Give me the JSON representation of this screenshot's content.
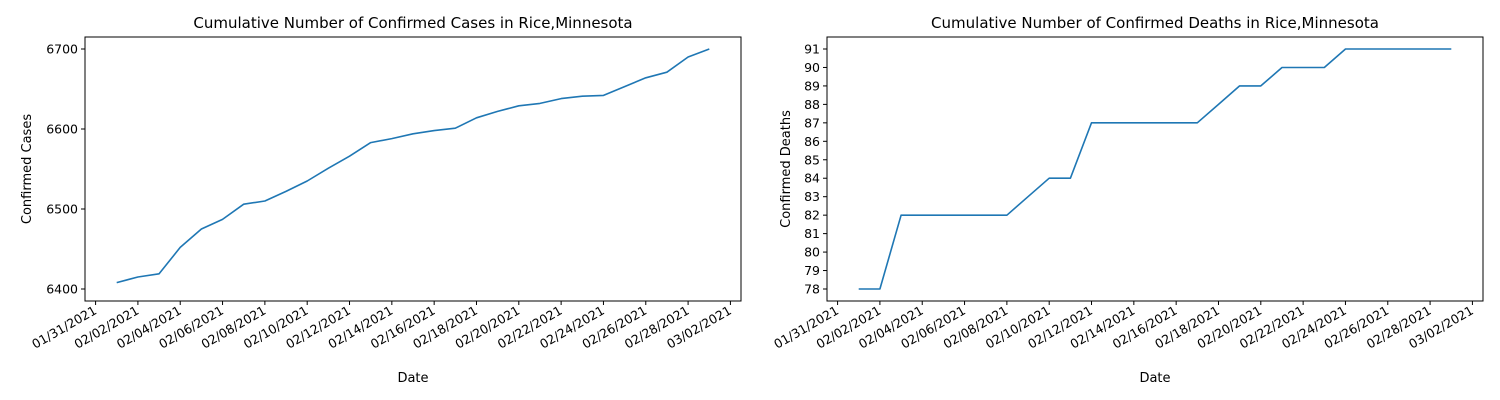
{
  "colors": {
    "series": "#1f77b4",
    "axes": "#000000",
    "background": "#ffffff"
  },
  "chart_data": [
    {
      "type": "line",
      "title": "Cumulative Number of Confirmed Cases in Rice,Minnesota",
      "xlabel": "Date",
      "ylabel": "Confirmed Cases",
      "xlim": [
        "2021-01-31",
        "2021-03-02"
      ],
      "ylim": [
        6400,
        6700
      ],
      "x_ticks": [
        "01/31/2021",
        "02/02/2021",
        "02/04/2021",
        "02/06/2021",
        "02/08/2021",
        "02/10/2021",
        "02/12/2021",
        "02/14/2021",
        "02/16/2021",
        "02/18/2021",
        "02/20/2021",
        "02/22/2021",
        "02/24/2021",
        "02/26/2021",
        "02/28/2021",
        "03/02/2021"
      ],
      "y_ticks": [
        "6400",
        "6500",
        "6600",
        "6700"
      ],
      "grid": false,
      "series": [
        {
          "x": [
            "2021-02-01",
            "2021-02-02",
            "2021-02-03",
            "2021-02-04",
            "2021-02-05",
            "2021-02-06",
            "2021-02-07",
            "2021-02-08",
            "2021-02-09",
            "2021-02-10",
            "2021-02-11",
            "2021-02-12",
            "2021-02-13",
            "2021-02-14",
            "2021-02-15",
            "2021-02-16",
            "2021-02-17",
            "2021-02-18",
            "2021-02-19",
            "2021-02-20",
            "2021-02-21",
            "2021-02-22",
            "2021-02-23",
            "2021-02-24",
            "2021-02-25",
            "2021-02-26",
            "2021-02-27",
            "2021-02-28",
            "2021-03-01"
          ],
          "values": [
            6408,
            6415,
            6419,
            6452,
            6475,
            6487,
            6506,
            6510,
            6522,
            6535,
            6551,
            6566,
            6583,
            6588,
            6594,
            6598,
            6601,
            6614,
            6622,
            6629,
            6632,
            6638,
            6641,
            6642,
            6653,
            6664,
            6671,
            6690,
            6700
          ]
        }
      ]
    },
    {
      "type": "line",
      "title": "Cumulative Number of Confirmed Deaths in Rice,Minnesota",
      "xlabel": "Date",
      "ylabel": "Confirmed Deaths",
      "xlim": [
        "2021-01-31",
        "2021-03-02"
      ],
      "ylim": [
        78,
        91
      ],
      "x_ticks": [
        "01/31/2021",
        "02/02/2021",
        "02/04/2021",
        "02/06/2021",
        "02/08/2021",
        "02/10/2021",
        "02/12/2021",
        "02/14/2021",
        "02/16/2021",
        "02/18/2021",
        "02/20/2021",
        "02/22/2021",
        "02/24/2021",
        "02/26/2021",
        "02/28/2021",
        "03/02/2021"
      ],
      "y_ticks": [
        "78",
        "79",
        "80",
        "81",
        "82",
        "83",
        "84",
        "85",
        "86",
        "87",
        "88",
        "89",
        "90",
        "91"
      ],
      "grid": false,
      "series": [
        {
          "x": [
            "2021-02-01",
            "2021-02-02",
            "2021-02-03",
            "2021-02-04",
            "2021-02-05",
            "2021-02-06",
            "2021-02-07",
            "2021-02-08",
            "2021-02-09",
            "2021-02-10",
            "2021-02-11",
            "2021-02-12",
            "2021-02-13",
            "2021-02-14",
            "2021-02-15",
            "2021-02-16",
            "2021-02-17",
            "2021-02-18",
            "2021-02-19",
            "2021-02-20",
            "2021-02-21",
            "2021-02-22",
            "2021-02-23",
            "2021-02-24",
            "2021-02-25",
            "2021-02-26",
            "2021-02-27",
            "2021-02-28",
            "2021-03-01"
          ],
          "values": [
            78,
            78,
            82,
            82,
            82,
            82,
            82,
            82,
            83,
            84,
            84,
            87,
            87,
            87,
            87,
            87,
            87,
            88,
            89,
            89,
            90,
            90,
            90,
            91,
            91,
            91,
            91,
            91,
            91
          ]
        }
      ]
    }
  ]
}
